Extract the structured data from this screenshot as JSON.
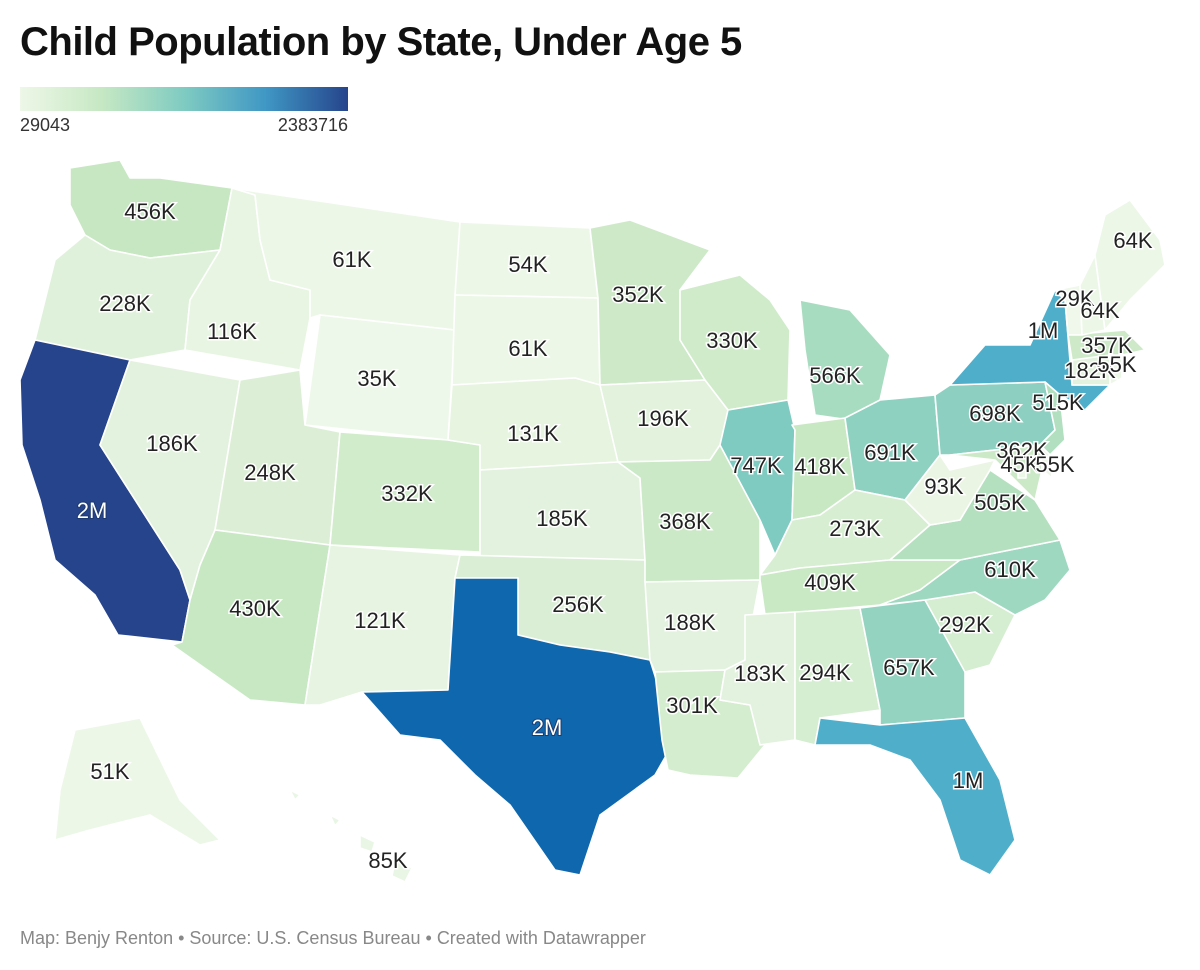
{
  "title": "Child Population by State, Under Age 5",
  "legend": {
    "min_label": "29043",
    "max_label": "2383716",
    "colors": [
      "#eef7e8",
      "#c6e8c3",
      "#7fcbc2",
      "#3f97c4",
      "#26448c"
    ]
  },
  "footer": "Map: Benjy Renton • Source: U.S. Census Bureau • Created with Datawrapper",
  "states": [
    {
      "id": "WA",
      "label": "456K",
      "fill": "#c6e7c1"
    },
    {
      "id": "OR",
      "label": "228K",
      "fill": "#e0f1db"
    },
    {
      "id": "CA",
      "label": "2M",
      "fill": "#26448c"
    },
    {
      "id": "ID",
      "label": "116K",
      "fill": "#e8f5e2"
    },
    {
      "id": "NV",
      "label": "186K",
      "fill": "#e3f2de"
    },
    {
      "id": "MT",
      "label": "61K",
      "fill": "#ecf7e7"
    },
    {
      "id": "WY",
      "label": "35K",
      "fill": "#eef8ea"
    },
    {
      "id": "UT",
      "label": "248K",
      "fill": "#dcefd6"
    },
    {
      "id": "AZ",
      "label": "430K",
      "fill": "#c7e8c3"
    },
    {
      "id": "CO",
      "label": "332K",
      "fill": "#d0ecca"
    },
    {
      "id": "NM",
      "label": "121K",
      "fill": "#e7f4e1"
    },
    {
      "id": "ND",
      "label": "54K",
      "fill": "#edf7e8"
    },
    {
      "id": "SD",
      "label": "61K",
      "fill": "#ecf7e7"
    },
    {
      "id": "NE",
      "label": "131K",
      "fill": "#e6f4e0"
    },
    {
      "id": "KS",
      "label": "185K",
      "fill": "#e3f2de"
    },
    {
      "id": "OK",
      "label": "256K",
      "fill": "#daeed5"
    },
    {
      "id": "TX",
      "label": "2M",
      "fill": "#0f68ad"
    },
    {
      "id": "MN",
      "label": "352K",
      "fill": "#cde9c8"
    },
    {
      "id": "IA",
      "label": "196K",
      "fill": "#e2f2dd"
    },
    {
      "id": "MO",
      "label": "368K",
      "fill": "#cbe9c6"
    },
    {
      "id": "AR",
      "label": "188K",
      "fill": "#e2f2de"
    },
    {
      "id": "LA",
      "label": "301K",
      "fill": "#d4edce"
    },
    {
      "id": "WI",
      "label": "330K",
      "fill": "#d0ebca"
    },
    {
      "id": "IL",
      "label": "747K",
      "fill": "#7fcbc2"
    },
    {
      "id": "MI",
      "label": "566K",
      "fill": "#a8dcc0"
    },
    {
      "id": "IN",
      "label": "418K",
      "fill": "#c8e8c3"
    },
    {
      "id": "OH",
      "label": "691K",
      "fill": "#8fd1c1"
    },
    {
      "id": "KY",
      "label": "273K",
      "fill": "#d8eed3"
    },
    {
      "id": "TN",
      "label": "409K",
      "fill": "#c9e8c4"
    },
    {
      "id": "MS",
      "label": "183K",
      "fill": "#e3f2de"
    },
    {
      "id": "AL",
      "label": "294K",
      "fill": "#d5edd0"
    },
    {
      "id": "GA",
      "label": "657K",
      "fill": "#95d3c1"
    },
    {
      "id": "FL",
      "label": "1M",
      "fill": "#4fafcb"
    },
    {
      "id": "SC",
      "label": "292K",
      "fill": "#d5edd0"
    },
    {
      "id": "NC",
      "label": "610K",
      "fill": "#9fd8c1"
    },
    {
      "id": "VA",
      "label": "505K",
      "fill": "#b5e0bf"
    },
    {
      "id": "WV",
      "label": "93K",
      "fill": "#eaf5e4"
    },
    {
      "id": "PA",
      "label": "698K",
      "fill": "#8dd0c1"
    },
    {
      "id": "NY",
      "label": "1M",
      "fill": "#4fafcb"
    },
    {
      "id": "NJ",
      "label": "515K",
      "fill": "#b2dfbf"
    },
    {
      "id": "MD",
      "label": "362K",
      "fill": "#cce9c7"
    },
    {
      "id": "DE",
      "label": "45K",
      "fill": "#edf7e8"
    },
    {
      "id": "DC",
      "label": "55K",
      "fill": "#edf7e8"
    },
    {
      "id": "CT",
      "label": "182K",
      "fill": "#e3f2de"
    },
    {
      "id": "RI",
      "label": "55K",
      "fill": "#edf7e8"
    },
    {
      "id": "MA",
      "label": "357K",
      "fill": "#cde9c8"
    },
    {
      "id": "VT",
      "label": "29K",
      "fill": "#eff8eb"
    },
    {
      "id": "NH",
      "label": "64K",
      "fill": "#ecf7e7"
    },
    {
      "id": "ME",
      "label": "64K",
      "fill": "#ecf7e7"
    },
    {
      "id": "AK",
      "label": "51K",
      "fill": "#edf7e8"
    },
    {
      "id": "HI",
      "label": "85K",
      "fill": "#eaf6e5"
    }
  ]
}
